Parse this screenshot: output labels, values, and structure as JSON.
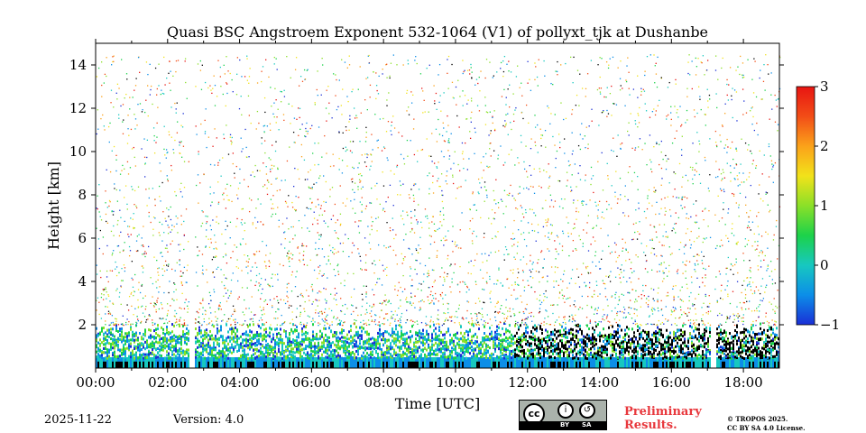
{
  "chart_data": {
    "type": "heatmap",
    "title": "Quasi BSC Angstroem Exponent 532-1064 (V1) of pollyxt_tjk at Dushanbe",
    "xlabel": "Time [UTC]",
    "ylabel": "Height [km]",
    "xlim": [
      0,
      19
    ],
    "ylim": [
      0,
      15
    ],
    "x_ticks": [
      0,
      2,
      4,
      6,
      8,
      10,
      12,
      14,
      16,
      18
    ],
    "x_tick_labels": [
      "00:00",
      "02:00",
      "04:00",
      "06:00",
      "08:00",
      "10:00",
      "12:00",
      "14:00",
      "16:00",
      "18:00"
    ],
    "y_ticks": [
      2,
      4,
      6,
      8,
      10,
      12,
      14
    ],
    "y_tick_labels": [
      "2",
      "4",
      "6",
      "8",
      "10",
      "12",
      "14"
    ],
    "colorbar": {
      "range": [
        -1,
        3
      ],
      "ticks": [
        3,
        2,
        1,
        0,
        -1
      ],
      "tick_labels": [
        "3",
        "2",
        "1",
        "0",
        "−1"
      ],
      "colors": [
        "#1a2fd6",
        "#0c8ee8",
        "#17c8c0",
        "#1cd24a",
        "#8be028",
        "#f2e21a",
        "#fba21a",
        "#f24d17",
        "#e81512"
      ]
    },
    "data_gaps_hours": [
      [
        2.58,
        2.75
      ],
      [
        17.08,
        17.2
      ]
    ],
    "near_surface_layer": {
      "top_km": 2.0,
      "dense_bottom_km": 0.5,
      "low_value_dark_band_hours": [
        11.6,
        19.0
      ]
    },
    "scatter_upper_limit_km": 14.5
  },
  "footer": {
    "date": "2025-11-22",
    "version": "Version: 4.0",
    "preliminary_line1": "Preliminary",
    "preliminary_line2": "Results.",
    "copyright_line1": "© TROPOS 2025.",
    "copyright_line2": "CC BY SA 4.0 License.",
    "license_badge": {
      "cc": "cc",
      "by": "BY",
      "sa": "SA"
    }
  }
}
